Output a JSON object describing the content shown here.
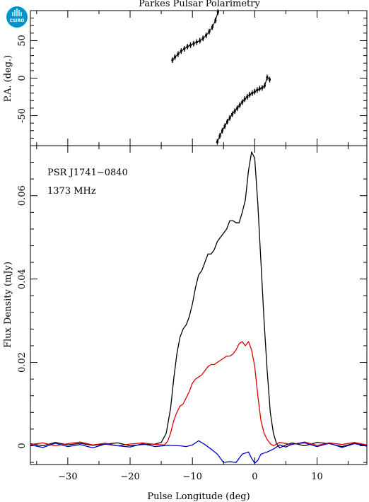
{
  "chart_data": [
    {
      "type": "scatter",
      "title": "Parkes Pulsar Polarimetry",
      "ylabel": "P.A. (deg.)",
      "xlim": [
        -36,
        18
      ],
      "ylim": [
        -90,
        90
      ],
      "yticks": [
        -50,
        0,
        50
      ],
      "xticks": [
        -30,
        -20,
        -10,
        0,
        10
      ],
      "series": [
        {
          "color": "#000000",
          "x": [
            -13.2,
            -12.8,
            -12.3,
            -11.8,
            -11.3,
            -10.8,
            -10.3,
            -9.8,
            -9.3,
            -8.8,
            -8.3,
            -7.8,
            -7.3,
            -6.8,
            -6.3,
            -5.9
          ],
          "y": [
            24,
            28,
            32,
            36,
            39,
            42,
            44,
            46,
            48,
            50,
            53,
            57,
            62,
            68,
            77,
            88
          ]
        },
        {
          "color": "#000000",
          "x": [
            -6.0,
            -5.6,
            -5.2,
            -4.8,
            -4.4,
            -4.0,
            -3.6,
            -3.2,
            -2.8,
            -2.4,
            -2.0,
            -1.6,
            -1.2,
            -0.8,
            -0.4,
            0.0,
            0.4,
            0.8,
            1.2,
            1.6,
            2.0,
            2.4
          ],
          "y": [
            -85,
            -77,
            -70,
            -64,
            -58,
            -53,
            -48,
            -44,
            -40,
            -36,
            -32,
            -28,
            -25,
            -22,
            -20,
            -18,
            -16,
            -14,
            -13,
            -10,
            1,
            -2
          ]
        }
      ]
    },
    {
      "type": "line",
      "labels": [
        "PSR J1741−0840",
        "1373 MHz"
      ],
      "xlabel": "Pulse Longitude (deg)",
      "ylabel": "Flux Density (mJy)",
      "xlim": [
        -36,
        18
      ],
      "ylim": [
        -0.0045,
        0.072
      ],
      "yticks": [
        0,
        0.02,
        0.04,
        0.06
      ],
      "ytick_labels": [
        "0",
        "0.02",
        "0.04",
        "0.06"
      ],
      "xticks": [
        -30,
        -20,
        -10,
        0,
        10
      ],
      "series": [
        {
          "color": "#000000",
          "x": [
            -36,
            -34,
            -32,
            -30,
            -28,
            -26,
            -24,
            -22,
            -20,
            -18,
            -16,
            -15,
            -14.2,
            -13.5,
            -13,
            -12.5,
            -12,
            -11.5,
            -11,
            -10.5,
            -10,
            -9.5,
            -9,
            -8.5,
            -8,
            -7.5,
            -7,
            -6.5,
            -6,
            -5.5,
            -5,
            -4.5,
            -4,
            -3.5,
            -3,
            -2.5,
            -2,
            -1.5,
            -1,
            -0.5,
            0,
            0.5,
            1,
            1.5,
            2,
            2.5,
            3,
            3.5,
            4,
            5,
            6,
            8,
            10,
            12,
            14,
            16,
            18
          ],
          "y": [
            0.0005,
            0.0,
            0.0008,
            0.0002,
            0.0006,
            0.0001,
            0.0004,
            0.0007,
            0.0,
            0.0003,
            0.0004,
            0.0008,
            0.003,
            0.009,
            0.016,
            0.022,
            0.026,
            0.028,
            0.029,
            0.031,
            0.034,
            0.038,
            0.041,
            0.042,
            0.044,
            0.046,
            0.046,
            0.047,
            0.049,
            0.05,
            0.051,
            0.052,
            0.054,
            0.054,
            0.0535,
            0.0535,
            0.056,
            0.059,
            0.066,
            0.0705,
            0.069,
            0.058,
            0.044,
            0.03,
            0.018,
            0.008,
            0.003,
            0.0005,
            -0.0005,
            0.0002,
            0.0007,
            0.0,
            0.0008,
            0.0005,
            -0.0002,
            0.0006,
            0.0
          ]
        },
        {
          "color": "#dd0000",
          "x": [
            -36,
            -34,
            -32,
            -30,
            -28,
            -26,
            -24,
            -22,
            -20,
            -18,
            -16,
            -14.5,
            -14,
            -13.5,
            -13,
            -12.5,
            -12,
            -11.5,
            -11,
            -10.5,
            -10,
            -9.5,
            -9,
            -8.5,
            -8,
            -7.5,
            -7,
            -6.5,
            -6,
            -5.5,
            -5,
            -4.5,
            -4,
            -3.5,
            -3,
            -2.5,
            -2,
            -1.5,
            -1,
            -0.5,
            0,
            0.5,
            1,
            1.5,
            2,
            2.5,
            3,
            4,
            6,
            8,
            10,
            12,
            14,
            16,
            18
          ],
          "y": [
            0.0003,
            0.0007,
            0.0,
            0.0005,
            0.0009,
            0.0002,
            0.0006,
            0.0,
            0.0004,
            0.0007,
            0.0003,
            0.0002,
            0.001,
            0.003,
            0.006,
            0.008,
            0.0095,
            0.01,
            0.0115,
            0.013,
            0.015,
            0.016,
            0.0165,
            0.017,
            0.018,
            0.019,
            0.0195,
            0.0195,
            0.02,
            0.0205,
            0.021,
            0.0215,
            0.0215,
            0.022,
            0.023,
            0.0245,
            0.025,
            0.024,
            0.025,
            0.023,
            0.019,
            0.012,
            0.006,
            0.003,
            0.0015,
            0.0005,
            0.0,
            0.0008,
            0.0003,
            0.0009,
            0.0001,
            0.0007,
            0.0003,
            0.0008,
            0.0002
          ]
        },
        {
          "color": "#0000cc",
          "x": [
            -36,
            -34,
            -32,
            -30,
            -28,
            -26,
            -24,
            -22,
            -20,
            -18,
            -16,
            -14,
            -12,
            -11,
            -10,
            -9,
            -8,
            -7,
            -6,
            -5,
            -4,
            -3,
            -2,
            -1,
            -0.5,
            0,
            0.5,
            1,
            2,
            3,
            4,
            5,
            6,
            8,
            10,
            12,
            14,
            16,
            18
          ],
          "y": [
            0.0002,
            -0.0004,
            0.0006,
            -0.0002,
            0.0003,
            -0.0005,
            0.0004,
            0.0,
            -0.0003,
            0.0005,
            -0.0002,
            0.0001,
            0.0,
            -0.0002,
            0.0002,
            0.0012,
            0.0003,
            -0.0008,
            -0.002,
            -0.004,
            -0.0038,
            -0.004,
            -0.002,
            -0.0015,
            -0.003,
            -0.0042,
            -0.0035,
            -0.002,
            -0.0015,
            -0.0008,
            0.0002,
            -0.0003,
            0.0004,
            0.0007,
            -0.0002,
            0.0006,
            -0.0004,
            0.0005,
            -0.0001
          ]
        }
      ]
    }
  ],
  "logo": {
    "text": "CSIRO",
    "color": "#0095c8"
  }
}
